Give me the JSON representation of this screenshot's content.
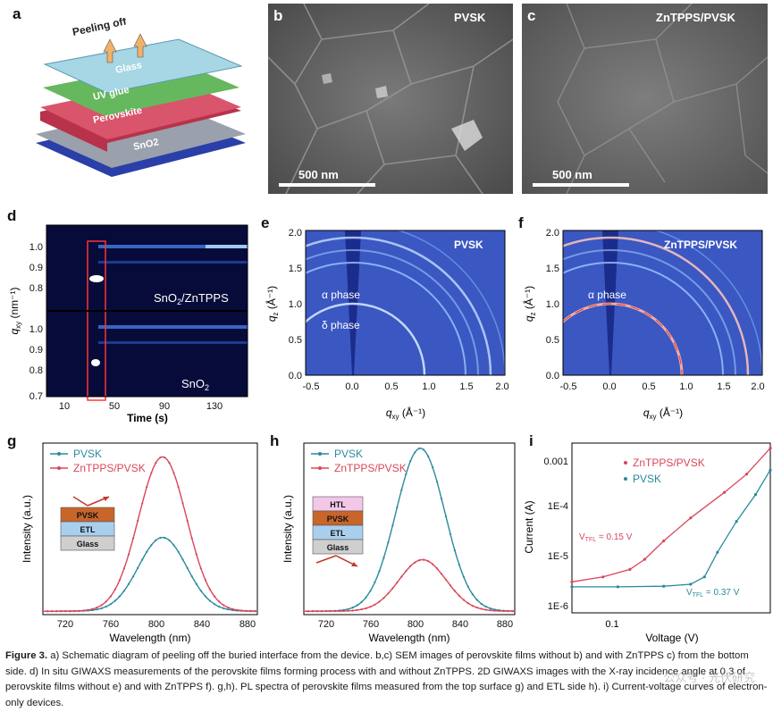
{
  "panels": {
    "a": {
      "label": "a",
      "layers": [
        "Glass",
        "UV glue",
        "Perovskite",
        "SnO2"
      ],
      "arrow_text": "Peeling off"
    },
    "b": {
      "label": "b",
      "title": "PVSK",
      "scale": "500 nm"
    },
    "c": {
      "label": "c",
      "title": "ZnTPPS/PVSK",
      "scale": "500 nm"
    },
    "d": {
      "label": "d",
      "ylabel": "q",
      "ylabel_sub": "xy",
      "ylabel_unit": "(nm⁻¹)",
      "xlabel": "Time (s)",
      "xticks": [
        "10",
        "50",
        "90",
        "130"
      ],
      "yticks_top": [
        "1.0",
        "0.9",
        "0.8"
      ],
      "yticks_bottom": [
        "1.0",
        "0.9",
        "0.8",
        "0.7"
      ],
      "top_label": "SnO2/ZnTPPS",
      "bottom_label": "SnO2"
    },
    "e": {
      "label": "e",
      "title": "PVSK",
      "alpha": "α phase",
      "delta": "δ phase",
      "xticks": [
        "-0.5",
        "0.0",
        "0.5",
        "1.0",
        "1.5",
        "2.0"
      ],
      "yticks": [
        "0.0",
        "0.5",
        "1.0",
        "1.5",
        "2.0"
      ],
      "xlabel": "q",
      "xlabel_sub": "xy",
      "xlabel_unit": "(Å⁻¹)",
      "ylabel": "q",
      "ylabel_sub": "z",
      "ylabel_unit": "(Å⁻¹)"
    },
    "f": {
      "label": "f",
      "title": "ZnTPPS/PVSK",
      "alpha": "α phase",
      "xticks": [
        "-0.5",
        "0.0",
        "0.5",
        "1.0",
        "1.5",
        "2.0"
      ],
      "yticks": [
        "0.0",
        "0.5",
        "1.0",
        "1.5",
        "2.0"
      ],
      "xlabel": "q",
      "xlabel_sub": "xy",
      "xlabel_unit": "(Å⁻¹)",
      "ylabel": "q",
      "ylabel_sub": "z",
      "ylabel_unit": "(Å⁻¹)"
    },
    "g": {
      "label": "g",
      "legend": [
        "PVSK",
        "ZnTPPS/PVSK"
      ],
      "stack": [
        "PVSK",
        "ETL",
        "Glass"
      ],
      "xlabel": "Wavelength (nm)",
      "ylabel": "Intensity (a.u.)",
      "xticks": [
        "720",
        "760",
        "800",
        "840",
        "880"
      ]
    },
    "h": {
      "label": "h",
      "legend": [
        "PVSK",
        "ZnTPPS/PVSK"
      ],
      "stack": [
        "HTL",
        "PVSK",
        "ETL",
        "Glass"
      ],
      "xlabel": "Wavelength (nm)",
      "ylabel": "Intensity (a.u.)",
      "xticks": [
        "720",
        "760",
        "800",
        "840",
        "880"
      ]
    },
    "i": {
      "label": "i",
      "legend": [
        "ZnTPPS/PVSK",
        "PVSK"
      ],
      "xlabel": "Voltage (V)",
      "ylabel": "Current (A)",
      "yticks": [
        "0.001",
        "1E-4",
        "1E-5",
        "1E-6"
      ],
      "xticks": [
        "0.1"
      ],
      "vtfl1": "V",
      "vtfl1_sub": "TFL",
      "vtfl1_val": " = 0.15 V",
      "vtfl2": "V",
      "vtfl2_sub": "TFL",
      "vtfl2_val": " = 0.37 V"
    }
  },
  "colors": {
    "pvsk": "#2a8a9c",
    "zntpps": "#d9465a"
  },
  "chart_data": [
    {
      "type": "line",
      "panel": "g",
      "xlabel": "Wavelength (nm)",
      "ylabel": "Intensity (a.u.)",
      "xlim": [
        700,
        890
      ],
      "series": [
        {
          "name": "PVSK",
          "peak_x": 806,
          "peak_y": 0.43,
          "fwhm": 50
        },
        {
          "name": "ZnTPPS/PVSK",
          "peak_x": 806,
          "peak_y": 0.9,
          "fwhm": 50
        }
      ]
    },
    {
      "type": "line",
      "panel": "h",
      "xlabel": "Wavelength (nm)",
      "ylabel": "Intensity (a.u.)",
      "xlim": [
        700,
        890
      ],
      "series": [
        {
          "name": "PVSK",
          "peak_x": 805,
          "peak_y": 0.95,
          "fwhm": 52
        },
        {
          "name": "ZnTPPS/PVSK",
          "peak_x": 807,
          "peak_y": 0.3,
          "fwhm": 50
        }
      ]
    },
    {
      "type": "scatter",
      "panel": "i",
      "xlabel": "Voltage (V)",
      "ylabel": "Current (A)",
      "xscale": "log",
      "yscale": "log",
      "xlim": [
        0.05,
        1.0
      ],
      "ylim": [
        1e-06,
        0.002
      ],
      "series": [
        {
          "name": "ZnTPPS/PVSK",
          "x": [
            0.05,
            0.08,
            0.12,
            0.15,
            0.2,
            0.3,
            0.5,
            0.7,
            1.0
          ],
          "y": [
            4e-06,
            5e-06,
            7e-06,
            1.1e-05,
            2.5e-05,
            7e-05,
            0.00022,
            0.0005,
            0.0016
          ]
        },
        {
          "name": "PVSK",
          "x": [
            0.05,
            0.1,
            0.2,
            0.3,
            0.37,
            0.45,
            0.6,
            0.8,
            1.0
          ],
          "y": [
            3.2e-06,
            3.2e-06,
            3.3e-06,
            3.6e-06,
            5e-06,
            1.5e-05,
            6e-05,
            0.0002,
            0.0006
          ]
        }
      ]
    }
  ],
  "caption": {
    "fig": "Figure 3.",
    "text": "a) Schematic diagram of peeling off the buried interface from the device. b,c) SEM images of perovskite films without b) and with ZnTPPS c) from the bottom side. d) In situ GIWAXS measurements of the perovskite films forming process with and without ZnTPPS. 2D GIWAXS images with the X-ray incidence angle at 0.3 of perovskite films without e) and with ZnTPPS f). g,h). PL spectra of perovskite films measured from the top surface g) and ETL side h). i) Current-voltage curves of electron-only devices."
  },
  "watermark": "公众号 · 光伏研究"
}
